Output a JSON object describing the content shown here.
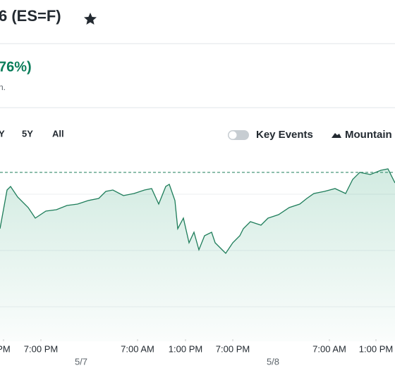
{
  "header": {
    "title": "6 (ES=F)",
    "change": "76%)",
    "note": "n."
  },
  "range_buttons": [
    "Y",
    "5Y",
    "All"
  ],
  "controls": {
    "key_events": "Key Events",
    "chart_style": "Mountain"
  },
  "chart_data": {
    "type": "area",
    "color": "#1e7d5a",
    "x": [
      0,
      10,
      15,
      25,
      40,
      50,
      65,
      80,
      95,
      110,
      125,
      140,
      150,
      160,
      175,
      190,
      205,
      215,
      225,
      235,
      240,
      248,
      252,
      260,
      268,
      275,
      282,
      290,
      300,
      305,
      315,
      320,
      330,
      340,
      345,
      355,
      370,
      380,
      395,
      410,
      425,
      435,
      445,
      460,
      475,
      490,
      500,
      510,
      525,
      540,
      550,
      560
    ],
    "values": [
      160,
      215,
      220,
      205,
      190,
      175,
      185,
      187,
      193,
      195,
      200,
      203,
      213,
      215,
      207,
      210,
      215,
      217,
      195,
      220,
      223,
      200,
      160,
      175,
      140,
      155,
      130,
      150,
      155,
      140,
      130,
      125,
      140,
      150,
      160,
      170,
      165,
      175,
      180,
      190,
      195,
      203,
      210,
      213,
      217,
      210,
      230,
      240,
      237,
      243,
      245,
      225
    ],
    "xlim": [
      0,
      560
    ],
    "ylim": [
      0,
      270
    ],
    "previous_close": 240,
    "xticks": [
      {
        "value": 5,
        "label": "PM"
      },
      {
        "value": 58,
        "label": "7:00 PM"
      },
      {
        "value": 195,
        "label": "7:00 AM"
      },
      {
        "value": 263,
        "label": "1:00 PM"
      },
      {
        "value": 330,
        "label": "7:00 PM"
      },
      {
        "value": 467,
        "label": "7:00 AM"
      },
      {
        "value": 533,
        "label": "1:00 PM"
      }
    ],
    "date_ticks": [
      {
        "value": 115,
        "label": "5/7"
      },
      {
        "value": 387,
        "label": "5/8"
      }
    ]
  }
}
